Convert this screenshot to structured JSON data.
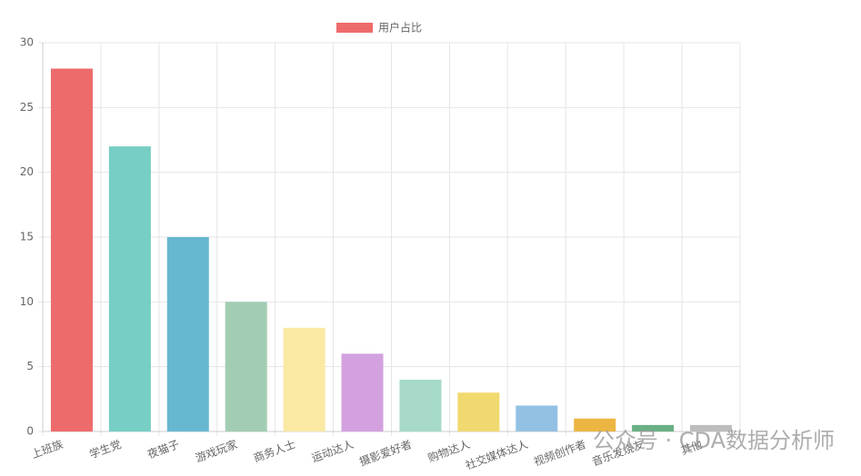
{
  "chart_data": {
    "type": "bar",
    "categories": [
      "上班族",
      "学生党",
      "夜猫子",
      "游戏玩家",
      "商务人士",
      "运动达人",
      "摄影爱好者",
      "购物达人",
      "社交媒体达人",
      "视频创作者",
      "音乐发烧友",
      "其他"
    ],
    "series": [
      {
        "name": "用户占比",
        "color": "#ee6b6b",
        "colors": [
          "#ee6b6b",
          "#76cec4",
          "#67b7d0",
          "#a2cdb3",
          "#f9e9a3",
          "#d3a1df",
          "#a6d9c8",
          "#f0d96f",
          "#93c1e3",
          "#edb643",
          "#6ab085",
          "#bdbdbd"
        ],
        "values": [
          28,
          22,
          15,
          10,
          8,
          6,
          4,
          3,
          2,
          1,
          0.5,
          0.5
        ]
      }
    ],
    "ylim": [
      0,
      30
    ],
    "yticks": [
      0,
      5,
      10,
      15,
      20,
      25,
      30
    ],
    "grid": true,
    "legend": "top",
    "watermark": "公众号 · CDA数据分析师"
  }
}
